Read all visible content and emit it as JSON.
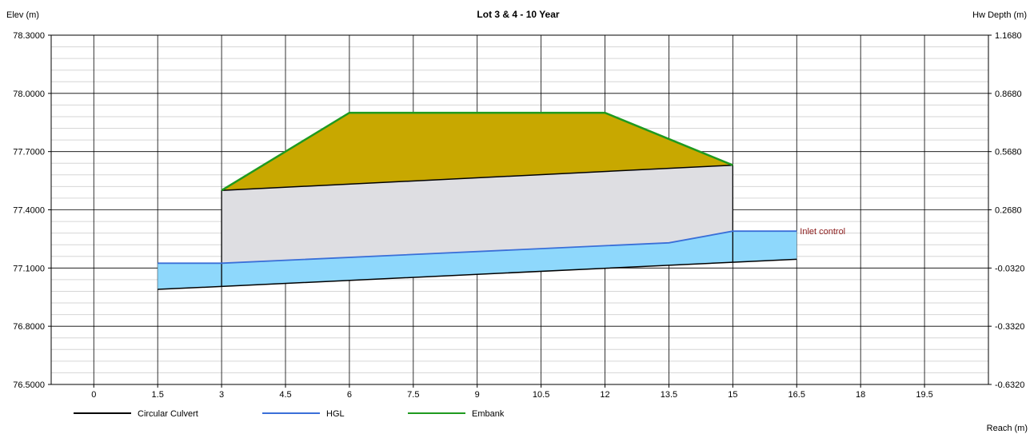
{
  "chart_data": {
    "type": "area",
    "title": "Lot 3 & 4 - 10 Year",
    "ylabel_left": "Elev (m)",
    "ylabel_right": "Hw Depth (m)",
    "xlabel": "Reach (m)",
    "xlim": [
      -1,
      21
    ],
    "ylim": [
      76.5,
      78.3
    ],
    "x_ticks": [
      "0",
      "1.5",
      "3",
      "4.5",
      "6",
      "7.5",
      "9",
      "10.5",
      "12",
      "13.5",
      "15",
      "16.5",
      "18",
      "19.5"
    ],
    "y_ticks_left": [
      "78.3000",
      "78.0000",
      "77.7000",
      "77.4000",
      "77.1000",
      "76.8000",
      "76.5000"
    ],
    "y_ticks_right": [
      "1.1680",
      "0.8680",
      "0.5680",
      "0.2680",
      "-0.0320",
      "-0.3320",
      "-0.6320"
    ],
    "grid": true,
    "legend_position": "bottom-left",
    "series": [
      {
        "name": "Circular Culvert",
        "color": "#000000",
        "invert": [
          [
            1.5,
            76.99
          ],
          [
            3,
            77.005
          ],
          [
            15,
            77.13
          ],
          [
            16.5,
            77.145
          ]
        ],
        "crown": [
          [
            3,
            77.5
          ],
          [
            15,
            77.63
          ]
        ]
      },
      {
        "name": "HGL",
        "color": "#3a6fd8",
        "points": [
          [
            1.5,
            77.125
          ],
          [
            3,
            77.125
          ],
          [
            13.5,
            77.23
          ],
          [
            15,
            77.29
          ],
          [
            16.5,
            77.29
          ]
        ]
      },
      {
        "name": "Embank",
        "color": "#1f9a1f",
        "points": [
          [
            3,
            77.5
          ],
          [
            6,
            77.9
          ],
          [
            12,
            77.9
          ],
          [
            15,
            77.63
          ]
        ]
      }
    ],
    "fills": {
      "embankment": "#c8a800",
      "culvert": "#dedee2",
      "water": "#8ed8fc"
    },
    "annotations": [
      {
        "text": "Inlet control",
        "x": 16.5,
        "y": 77.29
      }
    ]
  }
}
